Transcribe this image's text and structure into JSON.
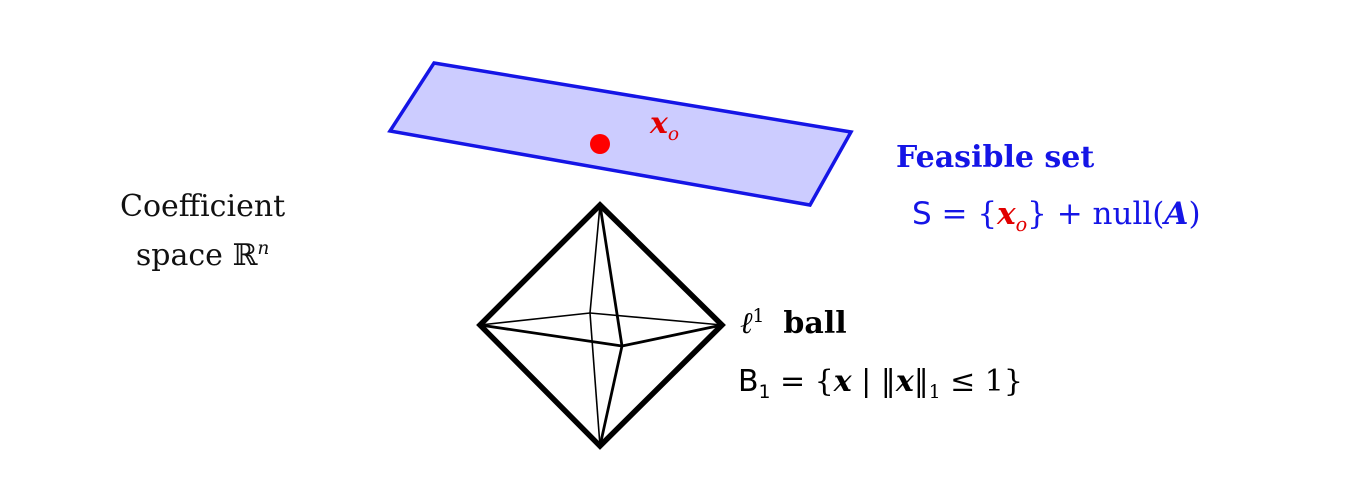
{
  "coefficient_space": {
    "line1": "Coefficient",
    "line2_text": "space ",
    "line2_symbol": "ℝ",
    "line2_sup": "n"
  },
  "point": {
    "label_main": "x",
    "label_sub": "o",
    "color": "#e10000"
  },
  "feasible_set": {
    "title": "Feasible set",
    "set_symbol": "S",
    "eq_open": " = {",
    "eq_x": "x",
    "eq_sub": "o",
    "eq_close": "} + null(",
    "eq_A": "A",
    "eq_end": ")",
    "fill_color": "#ccccff",
    "edge_color": "#1515e6"
  },
  "l1_ball": {
    "ell": "ℓ",
    "ell_sup": "1",
    "title": "ball",
    "set_symbol": "B",
    "set_sub": "1",
    "eq_open": " = {",
    "eq_x": "x",
    "eq_bar": " | ‖",
    "eq_x2": "x",
    "eq_norm_close": "‖",
    "eq_norm_sub": "1",
    "eq_leq": " ≤ 1}",
    "edge_color": "#000000"
  }
}
